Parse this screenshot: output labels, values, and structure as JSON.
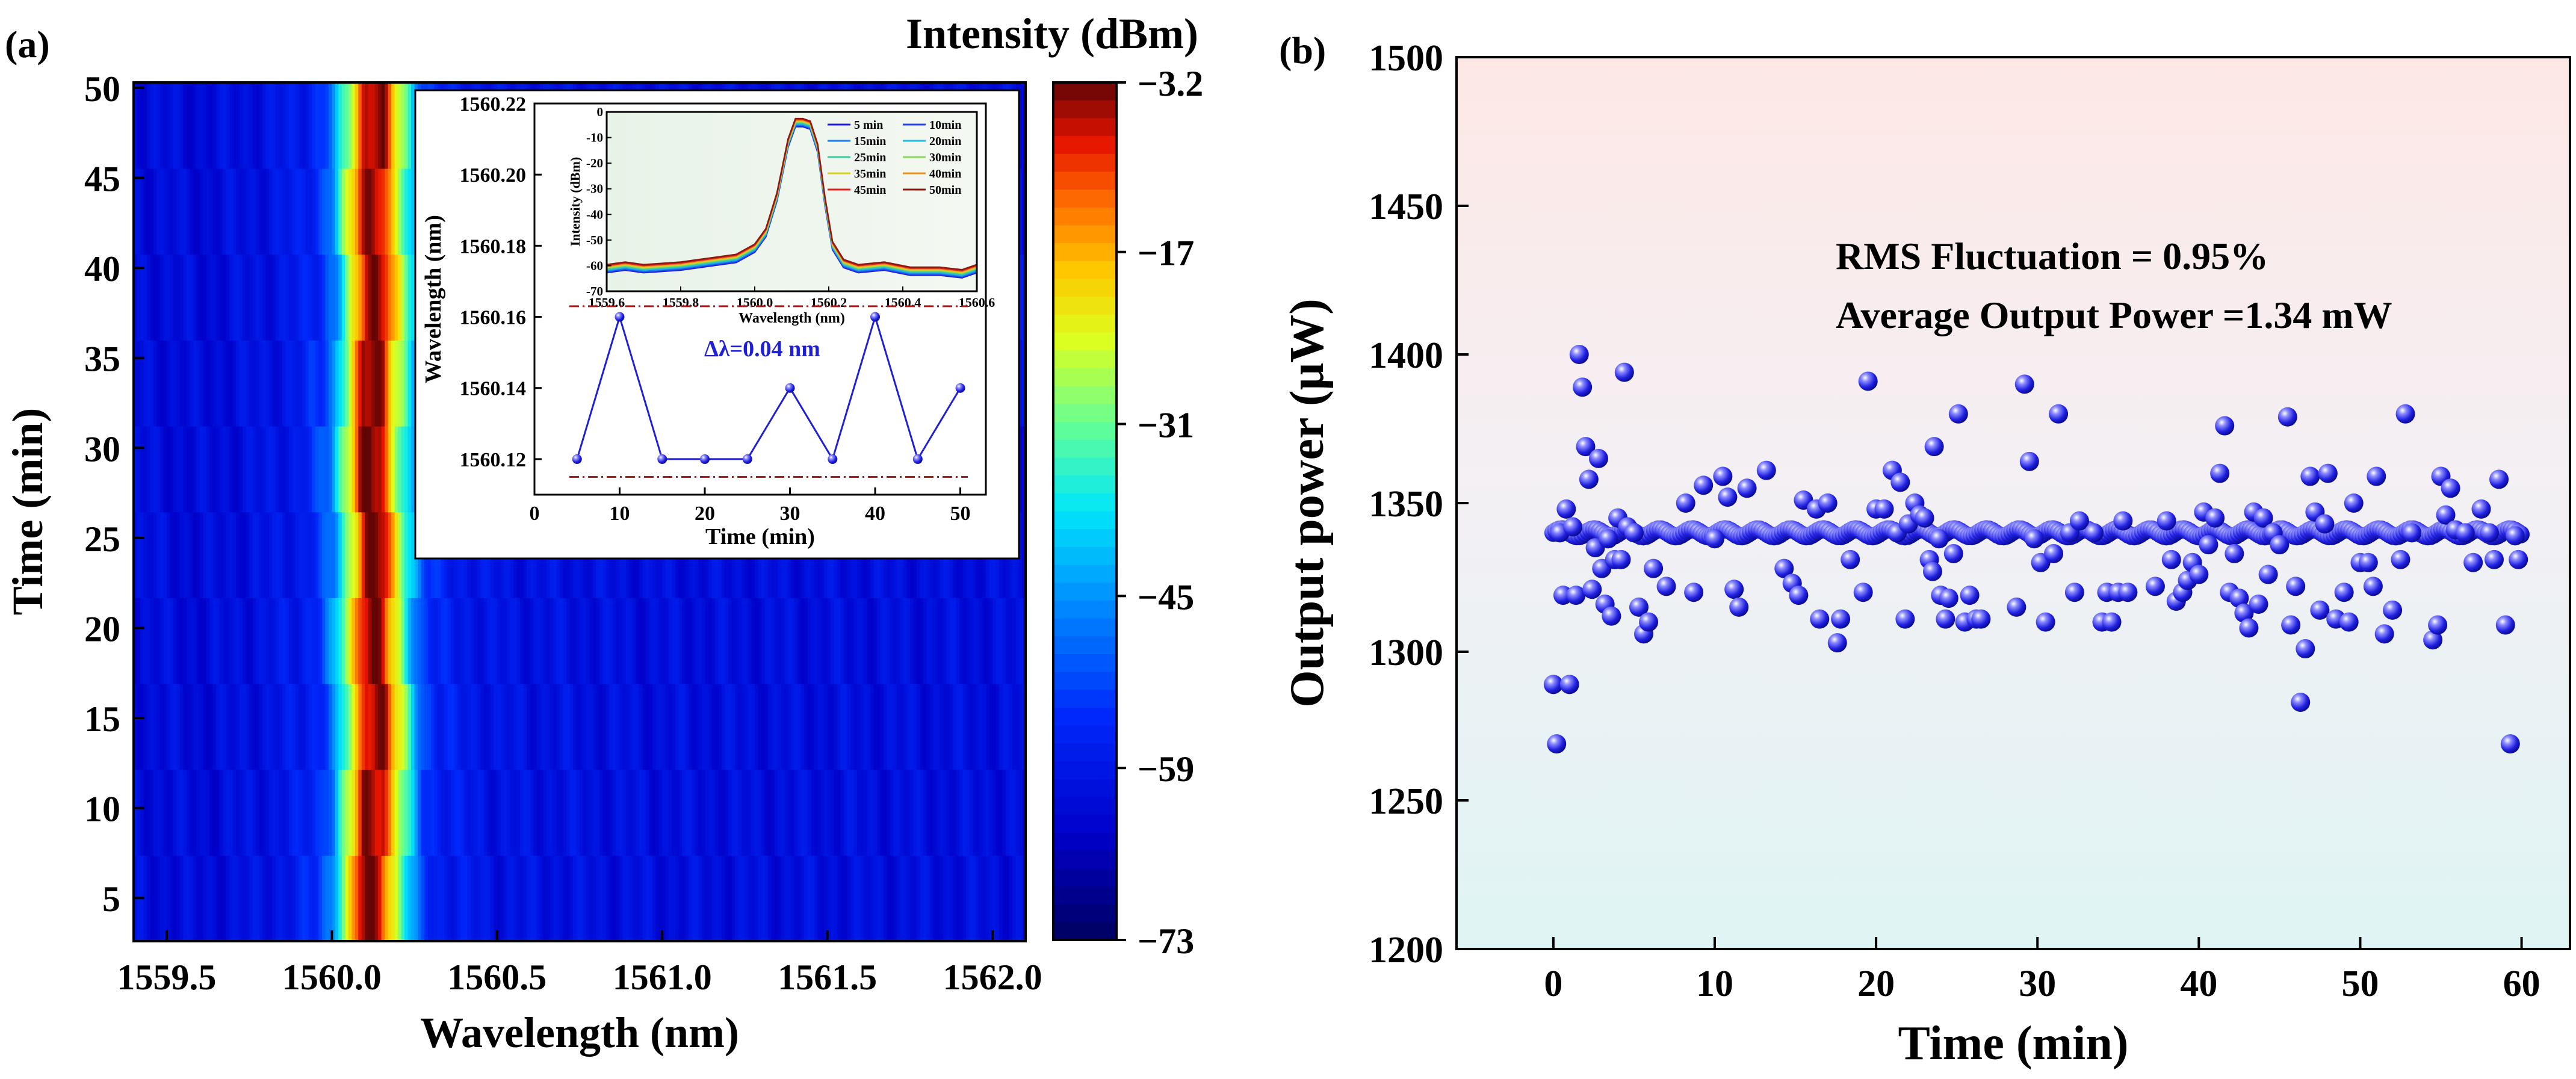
{
  "panel_a": {
    "label": "(a)",
    "colorbar_title": "Intensity (dBm)",
    "colorbar_ticks": [
      "-3.2",
      "-17",
      "-31",
      "-45",
      "-59",
      "-73"
    ]
  },
  "panel_b": {
    "label": "(b)",
    "annotations": [
      "RMS Fluctuation = 0.95%",
      "Average Output Power =1.34 mW"
    ]
  },
  "chart_data": [
    {
      "id": "heatmap",
      "type": "heatmap",
      "title": "",
      "xlabel": "Wavelength (nm)",
      "ylabel": "Time (min)",
      "xlim": [
        1559.4,
        1562.1
      ],
      "ylim": [
        2.6,
        50.3
      ],
      "x_ticks": [
        "1559.5",
        "1560.0",
        "1560.5",
        "1561.0",
        "1561.5",
        "1562.0"
      ],
      "y_ticks": [
        "5",
        "10",
        "15",
        "20",
        "25",
        "30",
        "35",
        "40",
        "45",
        "50"
      ],
      "colorbar": {
        "label": "Intensity (dBm)",
        "min": -73,
        "max": -3.2
      },
      "intensity_profile_dBm": {
        "wavelength_nm": [
          1559.4,
          1559.6,
          1559.8,
          1559.9,
          1559.96,
          1560.0,
          1560.03,
          1560.06,
          1560.09,
          1560.12,
          1560.15,
          1560.18,
          1560.21,
          1560.24,
          1560.27,
          1560.32,
          1560.5,
          1561.0,
          1561.5,
          1562.1
        ],
        "intensity_dBm": [
          -61,
          -62,
          -60,
          -58,
          -54,
          -46,
          -33,
          -21,
          -6,
          -4,
          -6,
          -20,
          -30,
          -42,
          -52,
          -57,
          -60,
          -61,
          -61,
          -61
        ]
      }
    },
    {
      "id": "inset-wavelength",
      "type": "line",
      "xlabel": "Time (min)",
      "ylabel": "Wavelength (nm)",
      "xlim": [
        0,
        53
      ],
      "ylim": [
        1560.11,
        1560.22
      ],
      "x_ticks": [
        "0",
        "10",
        "20",
        "30",
        "40",
        "50"
      ],
      "y_ticks": [
        "1560.12",
        "1560.14",
        "1560.16",
        "1560.18",
        "1560.20",
        "1560.22"
      ],
      "x": [
        5,
        10,
        15,
        20,
        25,
        30,
        35,
        40,
        45,
        50
      ],
      "y": [
        1560.12,
        1560.16,
        1560.12,
        1560.12,
        1560.12,
        1560.14,
        1560.12,
        1560.16,
        1560.12,
        1560.14
      ],
      "reference_lines": [
        1560.163,
        1560.115
      ],
      "annotation": "Δλ=0.04 nm",
      "color": "#1f1fd6"
    },
    {
      "id": "inset-spectrum",
      "type": "line",
      "xlabel": "Wavelength (nm)",
      "ylabel": "Intensity (dBm)",
      "xlim": [
        1559.6,
        1560.6
      ],
      "ylim": [
        -70,
        0
      ],
      "x_ticks": [
        "1559.6",
        "1559.8",
        "1560.0",
        "1560.2",
        "1560.4",
        "1560.6"
      ],
      "y_ticks": [
        "0",
        "-10",
        "-20",
        "-30",
        "-40",
        "-50",
        "-60",
        "-70"
      ],
      "x": [
        1559.6,
        1559.65,
        1559.7,
        1559.8,
        1559.9,
        1559.95,
        1560.0,
        1560.03,
        1560.06,
        1560.09,
        1560.11,
        1560.13,
        1560.15,
        1560.17,
        1560.19,
        1560.21,
        1560.24,
        1560.28,
        1560.35,
        1560.42,
        1560.5,
        1560.56,
        1560.6
      ],
      "y": [
        -61,
        -60,
        -61,
        -60,
        -58,
        -57,
        -53,
        -47,
        -33,
        -12,
        -4,
        -4,
        -5,
        -14,
        -35,
        -52,
        -59,
        -61,
        -60,
        -62,
        -62,
        -63,
        -61
      ],
      "series": [
        {
          "name": "5 min",
          "color": "#1f1fd6"
        },
        {
          "name": "10min",
          "color": "#2846e8"
        },
        {
          "name": "15min",
          "color": "#1a7ff0"
        },
        {
          "name": "20min",
          "color": "#22b8e0"
        },
        {
          "name": "25min",
          "color": "#3cc9a0"
        },
        {
          "name": "30min",
          "color": "#88d860"
        },
        {
          "name": "35min",
          "color": "#d8d020"
        },
        {
          "name": "40min",
          "color": "#f09020"
        },
        {
          "name": "45min",
          "color": "#e02020"
        },
        {
          "name": "50min",
          "color": "#8b1a10"
        }
      ]
    },
    {
      "id": "power-scatter",
      "type": "scatter",
      "xlabel": "Time (min)",
      "ylabel": "Output power (μW)",
      "xlim": [
        -6,
        63
      ],
      "ylim": [
        1200,
        1500
      ],
      "x_ticks": [
        "0",
        "10",
        "20",
        "30",
        "40",
        "50",
        "60"
      ],
      "y_ticks": [
        "1200",
        "1250",
        "1300",
        "1350",
        "1400",
        "1450",
        "1500"
      ],
      "baseline_uW": 1340,
      "color": "#2020e0",
      "points": [
        [
          0.0,
          1289
        ],
        [
          0.2,
          1269
        ],
        [
          0.4,
          1340
        ],
        [
          0.6,
          1319
        ],
        [
          0.8,
          1348
        ],
        [
          1.0,
          1289
        ],
        [
          1.2,
          1342
        ],
        [
          1.4,
          1319
        ],
        [
          1.6,
          1400
        ],
        [
          1.8,
          1389
        ],
        [
          2.0,
          1369
        ],
        [
          2.2,
          1358
        ],
        [
          2.4,
          1321
        ],
        [
          2.6,
          1335
        ],
        [
          2.8,
          1365
        ],
        [
          3.0,
          1328
        ],
        [
          3.2,
          1316
        ],
        [
          3.4,
          1338
        ],
        [
          3.6,
          1312
        ],
        [
          3.8,
          1331
        ],
        [
          4.0,
          1345
        ],
        [
          4.2,
          1331
        ],
        [
          4.4,
          1394
        ],
        [
          4.6,
          1342
        ],
        [
          5.0,
          1340
        ],
        [
          5.3,
          1315
        ],
        [
          5.6,
          1306
        ],
        [
          5.9,
          1310
        ],
        [
          6.2,
          1328
        ],
        [
          7.0,
          1322
        ],
        [
          8.2,
          1350
        ],
        [
          8.7,
          1320
        ],
        [
          9.3,
          1356
        ],
        [
          10.0,
          1338
        ],
        [
          10.5,
          1359
        ],
        [
          10.8,
          1352
        ],
        [
          11.2,
          1321
        ],
        [
          11.5,
          1315
        ],
        [
          12.0,
          1355
        ],
        [
          13.2,
          1361
        ],
        [
          14.3,
          1328
        ],
        [
          14.8,
          1323
        ],
        [
          15.2,
          1319
        ],
        [
          15.5,
          1351
        ],
        [
          16.3,
          1348
        ],
        [
          16.5,
          1311
        ],
        [
          17.0,
          1350
        ],
        [
          17.6,
          1303
        ],
        [
          17.8,
          1311
        ],
        [
          18.4,
          1331
        ],
        [
          19.2,
          1320
        ],
        [
          19.5,
          1391
        ],
        [
          20.0,
          1348
        ],
        [
          20.5,
          1348
        ],
        [
          21.0,
          1361
        ],
        [
          21.3,
          1340
        ],
        [
          21.5,
          1357
        ],
        [
          21.8,
          1311
        ],
        [
          22.0,
          1343
        ],
        [
          22.4,
          1350
        ],
        [
          22.7,
          1346
        ],
        [
          23.0,
          1345
        ],
        [
          23.3,
          1331
        ],
        [
          23.5,
          1327
        ],
        [
          23.6,
          1369
        ],
        [
          23.9,
          1338
        ],
        [
          24.0,
          1319
        ],
        [
          24.3,
          1311
        ],
        [
          24.5,
          1318
        ],
        [
          24.8,
          1333
        ],
        [
          25.1,
          1380
        ],
        [
          25.5,
          1310
        ],
        [
          25.8,
          1319
        ],
        [
          26.2,
          1311
        ],
        [
          26.5,
          1311
        ],
        [
          28.7,
          1315
        ],
        [
          29.2,
          1390
        ],
        [
          29.5,
          1364
        ],
        [
          29.8,
          1338
        ],
        [
          30.2,
          1330
        ],
        [
          30.5,
          1310
        ],
        [
          31.0,
          1333
        ],
        [
          31.3,
          1380
        ],
        [
          32.0,
          1340
        ],
        [
          32.3,
          1320
        ],
        [
          32.6,
          1344
        ],
        [
          33.5,
          1340
        ],
        [
          34.0,
          1310
        ],
        [
          34.3,
          1320
        ],
        [
          34.6,
          1310
        ],
        [
          35.0,
          1320
        ],
        [
          35.3,
          1344
        ],
        [
          35.6,
          1320
        ],
        [
          37.3,
          1322
        ],
        [
          38.0,
          1344
        ],
        [
          38.3,
          1331
        ],
        [
          38.6,
          1317
        ],
        [
          39.0,
          1320
        ],
        [
          39.3,
          1324
        ],
        [
          39.6,
          1330
        ],
        [
          40.0,
          1326
        ],
        [
          40.3,
          1347
        ],
        [
          40.6,
          1336
        ],
        [
          41.0,
          1345
        ],
        [
          41.3,
          1360
        ],
        [
          41.6,
          1376
        ],
        [
          41.9,
          1320
        ],
        [
          42.2,
          1333
        ],
        [
          42.5,
          1318
        ],
        [
          42.8,
          1313
        ],
        [
          43.1,
          1308
        ],
        [
          43.4,
          1347
        ],
        [
          43.7,
          1316
        ],
        [
          44.0,
          1345
        ],
        [
          44.3,
          1326
        ],
        [
          44.6,
          1340
        ],
        [
          45.0,
          1336
        ],
        [
          45.5,
          1379
        ],
        [
          45.7,
          1309
        ],
        [
          46.0,
          1322
        ],
        [
          46.3,
          1283
        ],
        [
          46.6,
          1301
        ],
        [
          46.9,
          1359
        ],
        [
          47.2,
          1347
        ],
        [
          47.5,
          1314
        ],
        [
          47.8,
          1343
        ],
        [
          48.0,
          1360
        ],
        [
          48.5,
          1311
        ],
        [
          49.0,
          1320
        ],
        [
          49.3,
          1310
        ],
        [
          49.6,
          1350
        ],
        [
          50.0,
          1330
        ],
        [
          50.5,
          1330
        ],
        [
          50.8,
          1322
        ],
        [
          51.0,
          1359
        ],
        [
          51.5,
          1306
        ],
        [
          52.0,
          1314
        ],
        [
          52.5,
          1331
        ],
        [
          52.8,
          1380
        ],
        [
          53.2,
          1340
        ],
        [
          54.5,
          1304
        ],
        [
          54.8,
          1309
        ],
        [
          55.0,
          1359
        ],
        [
          55.3,
          1346
        ],
        [
          55.6,
          1355
        ],
        [
          55.9,
          1341
        ],
        [
          56.5,
          1340
        ],
        [
          57.0,
          1330
        ],
        [
          57.5,
          1348
        ],
        [
          58.0,
          1340
        ],
        [
          58.3,
          1331
        ],
        [
          58.6,
          1358
        ],
        [
          59.0,
          1309
        ],
        [
          59.3,
          1269
        ],
        [
          59.6,
          1339
        ],
        [
          59.8,
          1331
        ]
      ]
    }
  ]
}
